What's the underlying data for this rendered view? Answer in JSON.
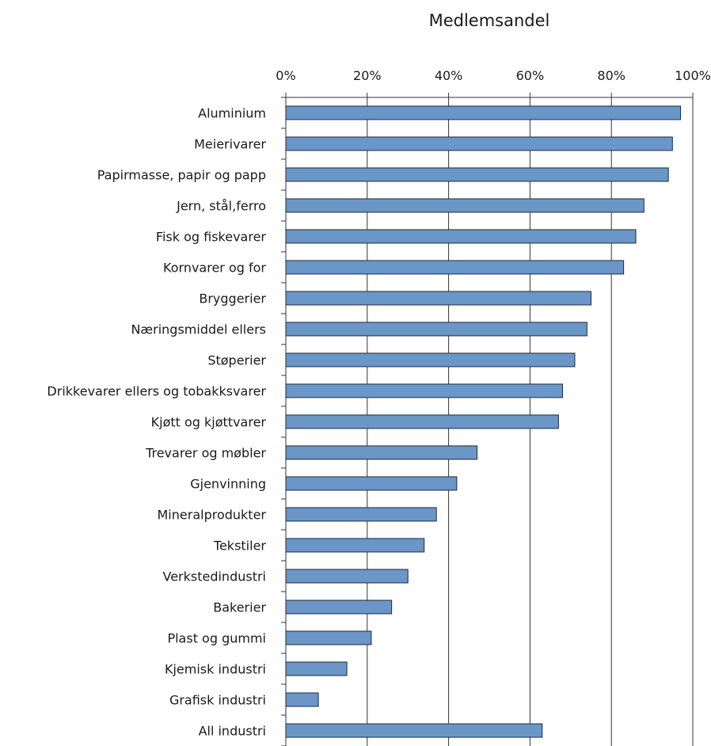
{
  "chart_data": {
    "type": "bar",
    "orientation": "horizontal",
    "title": "Medlemsandel",
    "xlabel": "",
    "ylabel": "",
    "xlim": [
      0,
      100
    ],
    "x_ticks": [
      "0%",
      "20%",
      "40%",
      "60%",
      "80%",
      "100%"
    ],
    "x_axis_position": "top",
    "grid": "vertical",
    "legend": "none",
    "bar_color": "#6a96c8",
    "categories": [
      "Aluminium",
      "Meierivarer",
      "Papirmasse, papir og papp",
      "Jern, stål,ferro",
      "Fisk og fiskevarer",
      "Kornvarer og for",
      "Bryggerier",
      "Næringsmiddel ellers",
      "Støperier",
      "Drikkevarer ellers og tobakksvarer",
      "Kjøtt og kjøttvarer",
      "Trevarer og møbler",
      "Gjenvinning",
      "Mineralprodukter",
      "Tekstiler",
      "Verkstedindustri",
      "Bakerier",
      "Plast og gummi",
      "Kjemisk industri",
      "Grafisk industri",
      "All industri"
    ],
    "values": [
      97,
      95,
      94,
      88,
      86,
      83,
      75,
      74,
      71,
      68,
      67,
      47,
      42,
      37,
      34,
      30,
      26,
      21,
      15,
      8,
      63
    ]
  }
}
